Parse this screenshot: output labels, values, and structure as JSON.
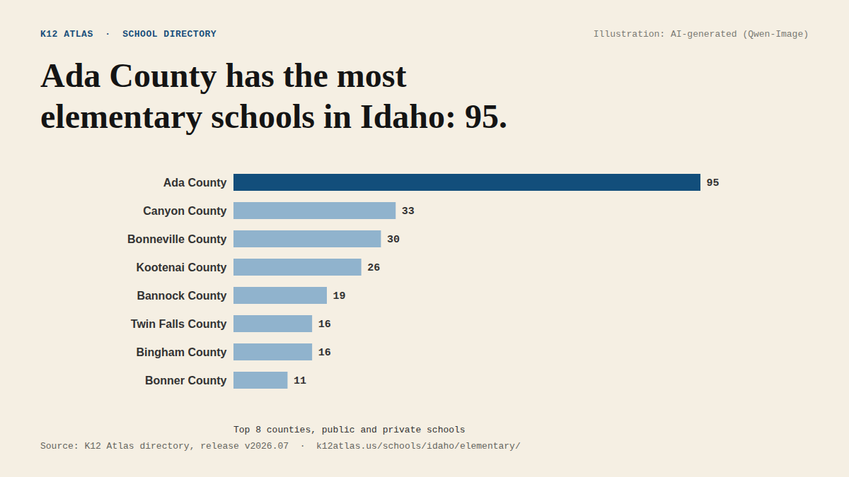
{
  "header": {
    "brand": "K12 ATLAS  ·  SCHOOL DIRECTORY",
    "credit": "Illustration: AI-generated (Qwen-Image)"
  },
  "chart_data": {
    "type": "bar",
    "orientation": "horizontal",
    "title": "Ada County has the most elementary schools in Idaho: 95.",
    "categories": [
      "Ada County",
      "Canyon County",
      "Bonneville County",
      "Kootenai County",
      "Bannock County",
      "Twin Falls County",
      "Bingham County",
      "Bonner County"
    ],
    "values": [
      95,
      33,
      30,
      26,
      19,
      16,
      16,
      11
    ],
    "colors": [
      "#124e7b",
      "#90b3cd",
      "#90b3cd",
      "#90b3cd",
      "#90b3cd",
      "#90b3cd",
      "#90b3cd",
      "#90b3cd"
    ],
    "data_labels": true,
    "tick_labels": "y",
    "grid": false,
    "caption": "Top 8 counties, public and private schools"
  },
  "footer": {
    "source": "Source: K12 Atlas directory, release v2026.07  ·  k12atlas.us/schools/idaho/elementary/"
  }
}
